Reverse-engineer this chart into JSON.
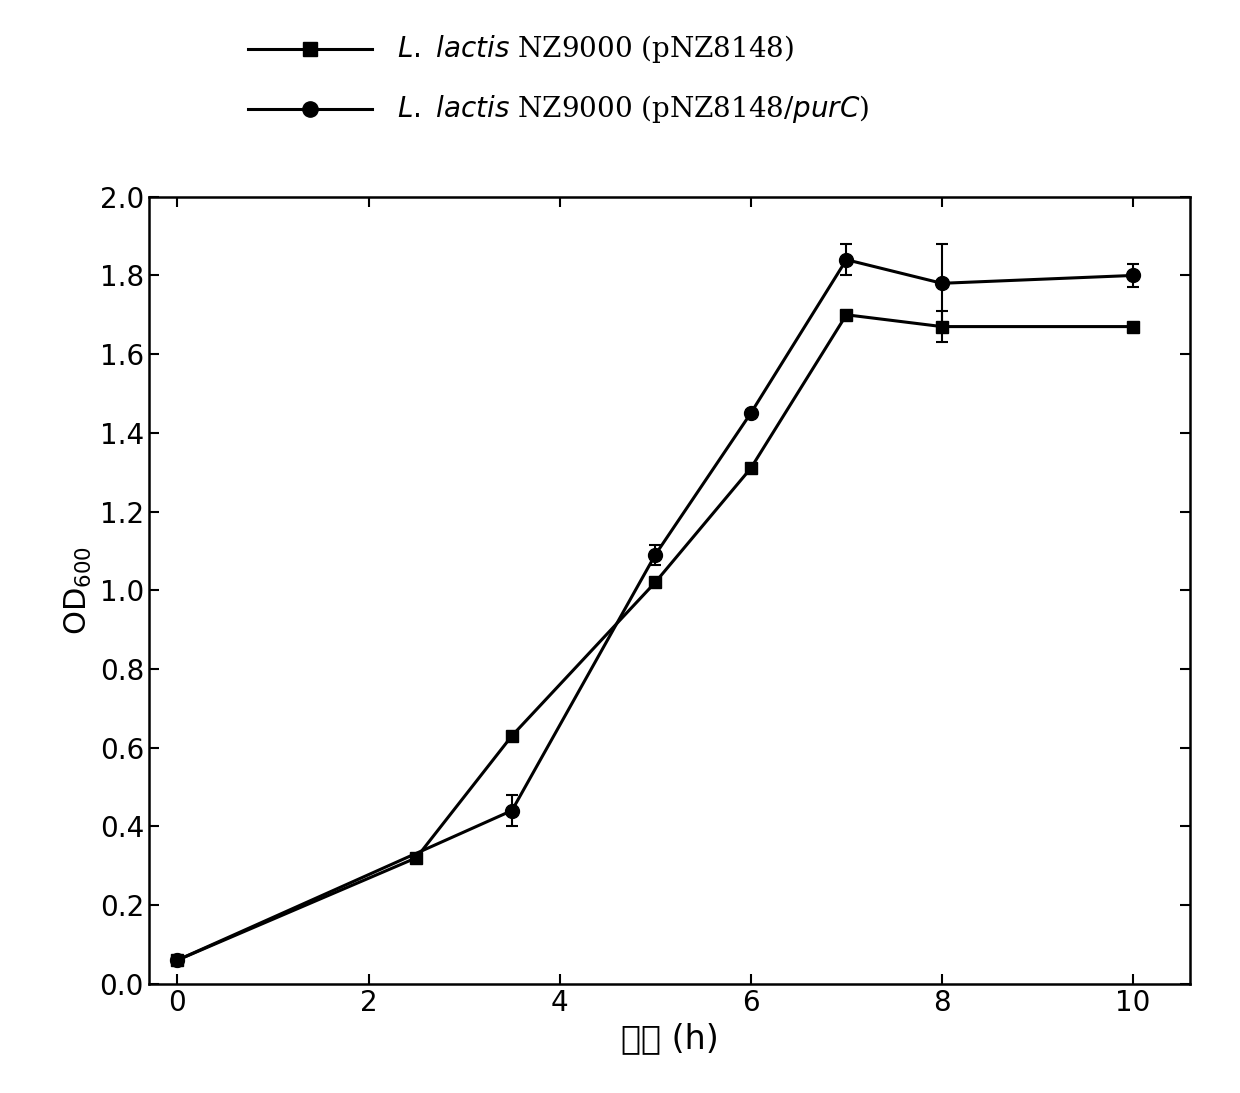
{
  "series1": {
    "x": [
      0,
      2.5,
      3.5,
      5,
      6,
      7,
      8,
      10
    ],
    "y": [
      0.06,
      0.32,
      0.63,
      1.02,
      1.31,
      1.7,
      1.67,
      1.67
    ],
    "yerr": [
      0.005,
      0.008,
      0.008,
      0.008,
      0.008,
      0.008,
      0.04,
      0.008
    ],
    "marker": "s",
    "color": "#000000",
    "linewidth": 2.2,
    "markersize": 9
  },
  "series2": {
    "x": [
      0,
      3.5,
      5,
      6,
      7,
      8,
      10
    ],
    "y": [
      0.06,
      0.44,
      1.09,
      1.45,
      1.84,
      1.78,
      1.8
    ],
    "yerr": [
      0.005,
      0.04,
      0.025,
      0.008,
      0.04,
      0.1,
      0.03
    ],
    "marker": "o",
    "color": "#000000",
    "linewidth": 2.2,
    "markersize": 10
  },
  "xlabel": "时间 (h)",
  "ylabel": "OD$_{600}$",
  "xlim": [
    -0.3,
    10.6
  ],
  "ylim": [
    0.0,
    2.0
  ],
  "xticks": [
    0,
    2,
    4,
    6,
    8,
    10
  ],
  "yticks": [
    0.0,
    0.2,
    0.4,
    0.6,
    0.8,
    1.0,
    1.2,
    1.4,
    1.6,
    1.8,
    2.0
  ],
  "xlabel_fontsize": 24,
  "ylabel_fontsize": 22,
  "tick_fontsize": 20,
  "legend_fontsize": 20,
  "background_color": "#ffffff"
}
